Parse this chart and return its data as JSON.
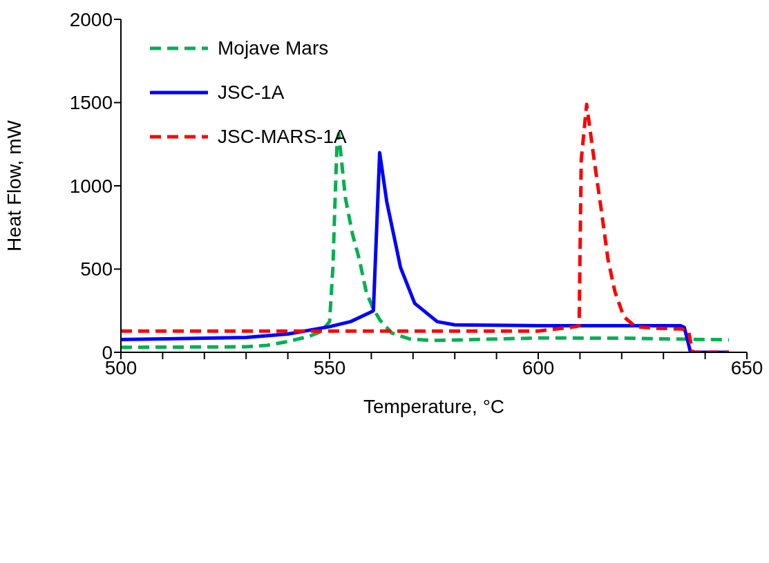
{
  "chart_data": {
    "type": "line",
    "xlabel": "Temperature, °C",
    "ylabel": "Heat Flow, mW",
    "xlim": [
      500,
      650
    ],
    "xticks": [
      500,
      {
        "value": 510,
        "label": null
      },
      {
        "value": 520,
        "label": null
      },
      {
        "value": 530,
        "label": null
      },
      {
        "value": 540,
        "label": null
      },
      550,
      {
        "value": 560,
        "label": null
      },
      {
        "value": 570,
        "label": null
      },
      {
        "value": 580,
        "label": null
      },
      {
        "value": 590,
        "label": null
      },
      600,
      {
        "value": 610,
        "label": null
      },
      {
        "value": 620,
        "label": null
      },
      {
        "value": 630,
        "label": null
      },
      {
        "value": 640,
        "label": null
      },
      650
    ],
    "ylim": [
      0,
      2000
    ],
    "yticks": [
      0,
      500,
      1000,
      1500,
      2000
    ],
    "grid": false,
    "legend": "top left",
    "marker": "none",
    "series": [
      {
        "name": "Mojave Mars",
        "color": "#00b050",
        "line_style": "dashed",
        "x": [
          500,
          530,
          535,
          540,
          545,
          548,
          550,
          550.8,
          551.3,
          551.8,
          552.2,
          553.8,
          555.5,
          557.1,
          558.8,
          560.4,
          562.1,
          564.9,
          569.2,
          575,
          600,
          620,
          640,
          645.7
        ],
        "values": [
          30,
          33,
          42,
          65,
          95,
          125,
          184,
          510,
          905,
          1261,
          1311,
          926,
          709,
          561,
          362,
          264,
          193,
          116,
          80,
          71,
          86,
          85,
          77,
          75
        ]
      },
      {
        "name": "JSC-1A",
        "color": "#0000ff",
        "line_style": "solid",
        "x": [
          500,
          530,
          540,
          550,
          555,
          560,
          560.5,
          562,
          563.7,
          567,
          570.4,
          575.8,
          580,
          600,
          634,
          635,
          636.5,
          645.7
        ],
        "values": [
          77,
          89,
          110,
          154,
          184,
          243,
          250,
          1199,
          905,
          510,
          294,
          184,
          165,
          160,
          160,
          150,
          0,
          0
        ]
      },
      {
        "name": "JSC-MARS-1A",
        "color": "#ff0000",
        "line_style": "dashed",
        "x": [
          500,
          600,
          609,
          609.8,
          610,
          610.3,
          611.6,
          613.4,
          615.1,
          616.7,
          618.4,
          620.5,
          623.3,
          627.8,
          634.4,
          636,
          637,
          645.7
        ],
        "values": [
          128,
          128,
          154,
          160,
          560,
          1154,
          1490,
          1154,
          857,
          560,
          362,
          214,
          154,
          145,
          140,
          130,
          0,
          0
        ]
      }
    ]
  }
}
